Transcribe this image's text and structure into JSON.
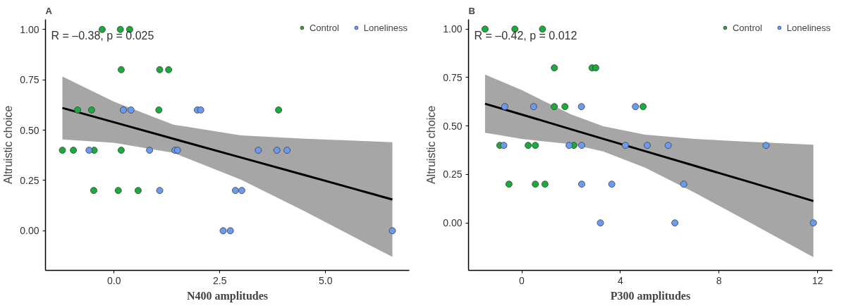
{
  "chart_data": [
    {
      "type": "scatter",
      "title": "A",
      "xlabel": "N400 amplitudes",
      "ylabel": "Altruistic choice",
      "xlim": [
        -1.62,
        6.98
      ],
      "ylim": [
        -0.197,
        1.05
      ],
      "xticks": [
        {
          "value": 0,
          "label": "0.0"
        },
        2.5,
        {
          "value": 5,
          "label": "5.0"
        }
      ],
      "yticks": [
        {
          "value": 0,
          "label": "0.00"
        },
        {
          "value": 0.25,
          "label": "0.25"
        },
        {
          "value": 0.5,
          "label": "0.50"
        },
        {
          "value": 0.75,
          "label": "0.75"
        },
        {
          "value": 1,
          "label": "1.00"
        }
      ],
      "grid": false,
      "legend": "top right",
      "marker": "circle",
      "annotations": [
        "R = –0.38, p = 0.025"
      ],
      "series": [
        {
          "name": "Control",
          "color": "#1aab3c",
          "x": [
            -0.28,
            0.15,
            0.37,
            0.17,
            1.08,
            1.29,
            -0.86,
            -0.53,
            1.06,
            3.89,
            -1.22,
            -0.96,
            -0.47,
            0.17,
            -0.48,
            0.1,
            0.57
          ],
          "values": [
            1.0,
            1.0,
            1.0,
            0.8,
            0.8,
            0.8,
            0.6,
            0.6,
            0.6,
            0.6,
            0.4,
            0.4,
            0.4,
            0.4,
            0.2,
            0.2,
            0.2
          ]
        },
        {
          "name": "Loneliness",
          "color": "#6b9bf0",
          "x": [
            0.22,
            0.4,
            1.97,
            2.05,
            -0.59,
            0.84,
            1.44,
            1.5,
            3.41,
            3.85,
            4.09,
            1.08,
            2.87,
            3.02,
            2.58,
            2.75,
            6.58
          ],
          "values": [
            0.6,
            0.6,
            0.6,
            0.6,
            0.4,
            0.4,
            0.4,
            0.4,
            0.4,
            0.4,
            0.4,
            0.2,
            0.2,
            0.2,
            0.0,
            0.0,
            0.0
          ]
        },
        {
          "type": "line",
          "marker": "none",
          "color": "#000000",
          "x": [
            -1.22,
            0,
            1.4,
            3,
            4.5,
            6,
            6.58
          ],
          "values": [
            0.61,
            0.539,
            0.457,
            0.364,
            0.277,
            0.189,
            0.155
          ],
          "lower": [
            0.454,
            0.437,
            0.387,
            0.254,
            0.097,
            -0.067,
            -0.13
          ],
          "upper": [
            0.766,
            0.641,
            0.527,
            0.474,
            0.457,
            0.445,
            0.44
          ]
        }
      ]
    },
    {
      "type": "scatter",
      "title": "B",
      "xlabel": "P300 amplitudes",
      "ylabel": "Altruistic choice",
      "xlim": [
        -2.16,
        12.6
      ],
      "ylim": [
        -0.245,
        1.05
      ],
      "xticks": [
        0,
        4,
        8,
        12
      ],
      "yticks": [
        {
          "value": 0,
          "label": "0.00"
        },
        {
          "value": 0.25,
          "label": "0.25"
        },
        {
          "value": 0.5,
          "label": "0.50"
        },
        {
          "value": 0.75,
          "label": "0.75"
        },
        {
          "value": 1,
          "label": "1.00"
        }
      ],
      "grid": false,
      "legend": "top right",
      "marker": "circle",
      "annotations": [
        "R = –0.42, p = 0.012"
      ],
      "series": [
        {
          "name": "Control",
          "color": "#1aab3c",
          "x": [
            -1.49,
            -0.28,
            0.84,
            1.32,
            2.85,
            3.0,
            1.32,
            1.75,
            4.92,
            -0.89,
            0.26,
            0.55,
            2.11,
            -0.52,
            0.55,
            0.94
          ],
          "values": [
            1.0,
            1.0,
            1.0,
            0.8,
            0.8,
            0.8,
            0.6,
            0.6,
            0.6,
            0.4,
            0.4,
            0.4,
            0.4,
            0.2,
            0.2,
            0.2
          ]
        },
        {
          "name": "Loneliness",
          "color": "#6b9bf0",
          "x": [
            -0.69,
            0.48,
            2.42,
            4.61,
            -0.73,
            1.92,
            2.43,
            4.2,
            5.09,
            5.94,
            9.91,
            2.43,
            3.65,
            6.57,
            3.19,
            6.21,
            11.83
          ],
          "values": [
            0.6,
            0.6,
            0.6,
            0.6,
            0.4,
            0.4,
            0.4,
            0.4,
            0.4,
            0.4,
            0.4,
            0.2,
            0.2,
            0.2,
            0.0,
            0.0,
            0.0
          ]
        },
        {
          "type": "line",
          "marker": "none",
          "color": "#000000",
          "x": [
            -1.49,
            0,
            2,
            3.3,
            5,
            7,
            9,
            11.83
          ],
          "values": [
            0.615,
            0.559,
            0.483,
            0.434,
            0.37,
            0.295,
            0.22,
            0.113
          ],
          "lower": [
            0.465,
            0.433,
            0.406,
            0.369,
            0.285,
            0.157,
            0.02,
            -0.177
          ],
          "upper": [
            0.765,
            0.685,
            0.56,
            0.499,
            0.455,
            0.433,
            0.42,
            0.403
          ]
        }
      ]
    }
  ]
}
